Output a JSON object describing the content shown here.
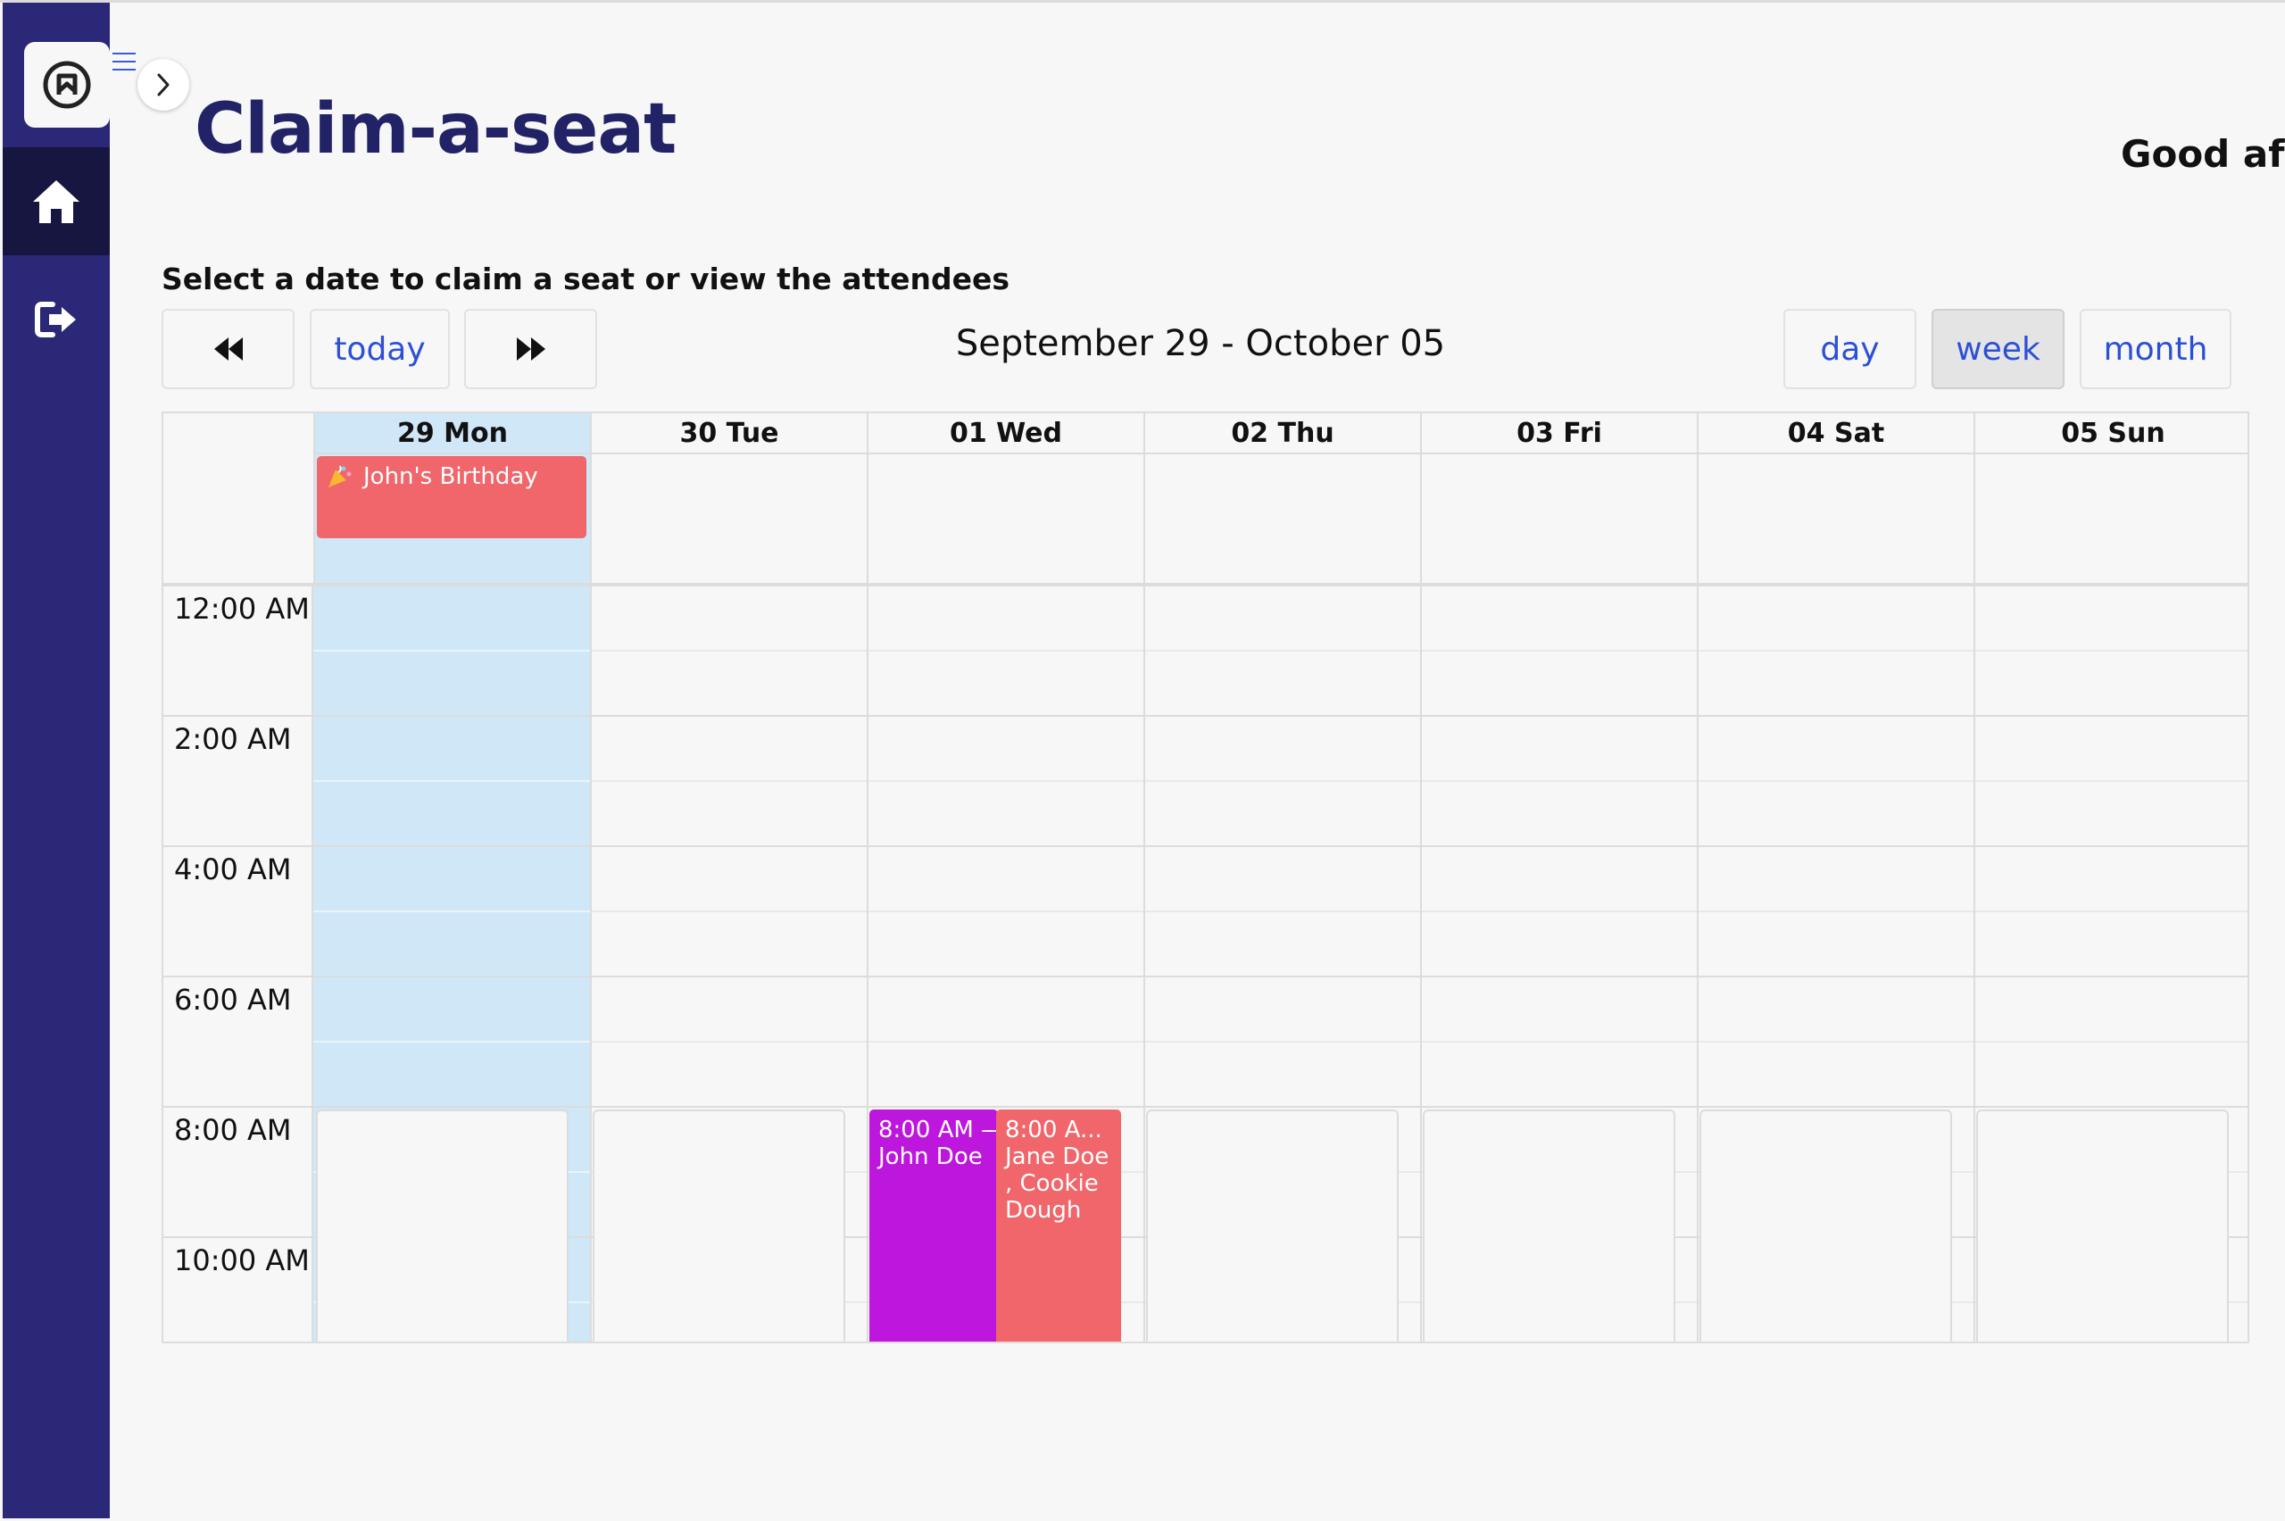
{
  "app": {
    "title": "Claim-a-seat",
    "greeting": "Good aft"
  },
  "sidebar": {
    "items": [
      {
        "name": "home",
        "icon": "home-icon"
      },
      {
        "name": "logout",
        "icon": "logout-icon"
      }
    ]
  },
  "instruction": "Select a date to claim a seat or view the attendees",
  "toolbar": {
    "prev_icon": "double-left-arrow-icon",
    "today_label": "today",
    "next_icon": "double-right-arrow-icon",
    "date_range": "September 29 - October 05",
    "views": [
      "day",
      "week",
      "month"
    ],
    "active_view": "week"
  },
  "calendar": {
    "days": [
      "29 Mon",
      "30 Tue",
      "01 Wed",
      "02 Thu",
      "03 Fri",
      "04 Sat",
      "05 Sun"
    ],
    "today_index": 0,
    "times": [
      "12:00 AM",
      "2:00 AM",
      "4:00 AM",
      "6:00 AM",
      "8:00 AM",
      "10:00 AM"
    ],
    "all_day_events": [
      {
        "day": "29 Mon",
        "title": "John's Birthday",
        "icon": "party-popper-icon"
      }
    ],
    "events": [
      {
        "day": "01 Wed",
        "time": "8:00 AM —",
        "title": "John Doe"
      },
      {
        "day": "01 Wed",
        "time": "8:00 A...",
        "title": "Jane Doe , Cookie Dough"
      }
    ]
  },
  "colors": {
    "sidebar": "#2a2877",
    "sidebar_active": "#171640",
    "title": "#222266",
    "link": "#2c4fd6",
    "today_column": "#cfe7f7",
    "event_red": "#f0666b",
    "event_purple": "#bd16dc"
  }
}
